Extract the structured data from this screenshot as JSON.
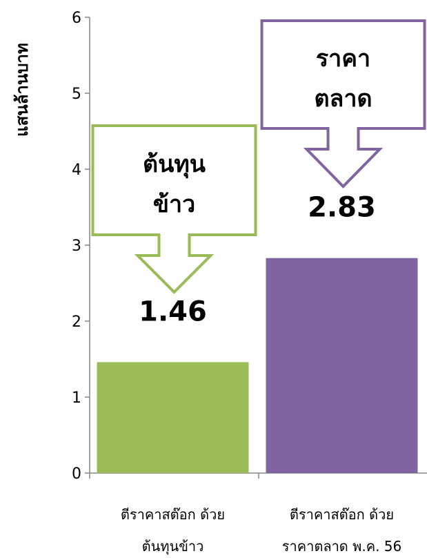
{
  "chart_data": {
    "type": "bar",
    "ylabel": "แสนล้านบาท",
    "ylim": [
      0,
      6
    ],
    "yticks": [
      "0",
      "1",
      "2",
      "3",
      "4",
      "5",
      "6"
    ],
    "grid": false,
    "categories": [
      {
        "line1": "ตีราคาสต๊อก ด้วย",
        "line2": "ต้นทุนข้าว"
      },
      {
        "line1": "ตีราคาสต๊อก ด้วย",
        "line2": "ราคาตลาด พ.ค. 56"
      }
    ],
    "values": [
      1.46,
      2.83
    ],
    "value_labels": [
      "1.46",
      "2.83"
    ],
    "colors": [
      "#9bbb59",
      "#8064a2"
    ],
    "callouts": [
      {
        "line1": "ต้นทุน",
        "line2": "ข้าว",
        "color": "#9bbb59"
      },
      {
        "line1": "ราคา",
        "line2": "ตลาด",
        "color": "#8064a2"
      }
    ]
  }
}
